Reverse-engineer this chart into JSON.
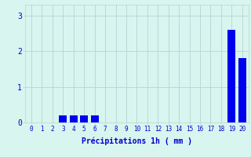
{
  "xlabel": "Précipitations 1h ( mm )",
  "ylabel": "",
  "hours": [
    0,
    1,
    2,
    3,
    4,
    5,
    6,
    7,
    8,
    9,
    10,
    11,
    12,
    13,
    14,
    15,
    16,
    17,
    18,
    19,
    20
  ],
  "values": [
    0,
    0,
    0,
    0.2,
    0.2,
    0.2,
    0.2,
    0,
    0,
    0,
    0,
    0,
    0,
    0,
    0,
    0,
    0,
    0,
    0,
    2.6,
    1.8
  ],
  "bar_color": "#0000ee",
  "background_color": "#d8f5f0",
  "grid_color": "#b8d4d0",
  "text_color": "#0000cc",
  "ylim": [
    0,
    3.3
  ],
  "yticks": [
    0,
    1,
    2,
    3
  ],
  "xlim": [
    -0.6,
    20.6
  ],
  "figsize": [
    3.2,
    2.0
  ],
  "dpi": 100,
  "xlabel_fontsize": 7,
  "tick_fontsize": 5.5,
  "ytick_fontsize": 7
}
